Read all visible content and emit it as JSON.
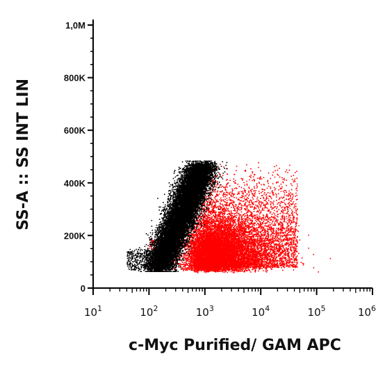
{
  "chart_data": {
    "type": "scatter",
    "xlabel": "c-Myc Purified/ GAM APC",
    "ylabel": "SS-A :: SS INT LIN",
    "x_scale": "log",
    "xlim": [
      10,
      1000000
    ],
    "ylim": [
      0,
      1000000
    ],
    "x_ticks": [
      {
        "value": 10,
        "base": "10",
        "exp": "1"
      },
      {
        "value": 100,
        "base": "10",
        "exp": "2"
      },
      {
        "value": 1000,
        "base": "10",
        "exp": "3"
      },
      {
        "value": 10000,
        "base": "10",
        "exp": "4"
      },
      {
        "value": 100000,
        "base": "10",
        "exp": "5"
      },
      {
        "value": 1000000,
        "base": "10",
        "exp": "6"
      }
    ],
    "y_ticks": [
      {
        "value": 0,
        "label": "0"
      },
      {
        "value": 200000,
        "label": "200K"
      },
      {
        "value": 400000,
        "label": "400K"
      },
      {
        "value": 600000,
        "label": "600K"
      },
      {
        "value": 800000,
        "label": "800K"
      },
      {
        "value": 1000000,
        "label": "1,0M"
      }
    ],
    "grid": false,
    "series": [
      {
        "color": "#000000",
        "description_points": [
          {
            "x": 150,
            "y": 90000
          },
          {
            "x": 200,
            "y": 120000
          },
          {
            "x": 250,
            "y": 160000
          },
          {
            "x": 300,
            "y": 220000
          },
          {
            "x": 400,
            "y": 300000
          },
          {
            "x": 600,
            "y": 380000
          },
          {
            "x": 800,
            "y": 440000
          },
          {
            "x": 1000,
            "y": 470000
          }
        ]
      },
      {
        "color": "#ff0000",
        "description_points": [
          {
            "x": 800,
            "y": 100000
          },
          {
            "x": 2000,
            "y": 150000
          },
          {
            "x": 5000,
            "y": 200000
          },
          {
            "x": 10000,
            "y": 180000
          },
          {
            "x": 20000,
            "y": 150000
          },
          {
            "x": 3000,
            "y": 350000
          },
          {
            "x": 8000,
            "y": 420000
          },
          {
            "x": 50000,
            "y": 250000
          }
        ]
      }
    ]
  }
}
